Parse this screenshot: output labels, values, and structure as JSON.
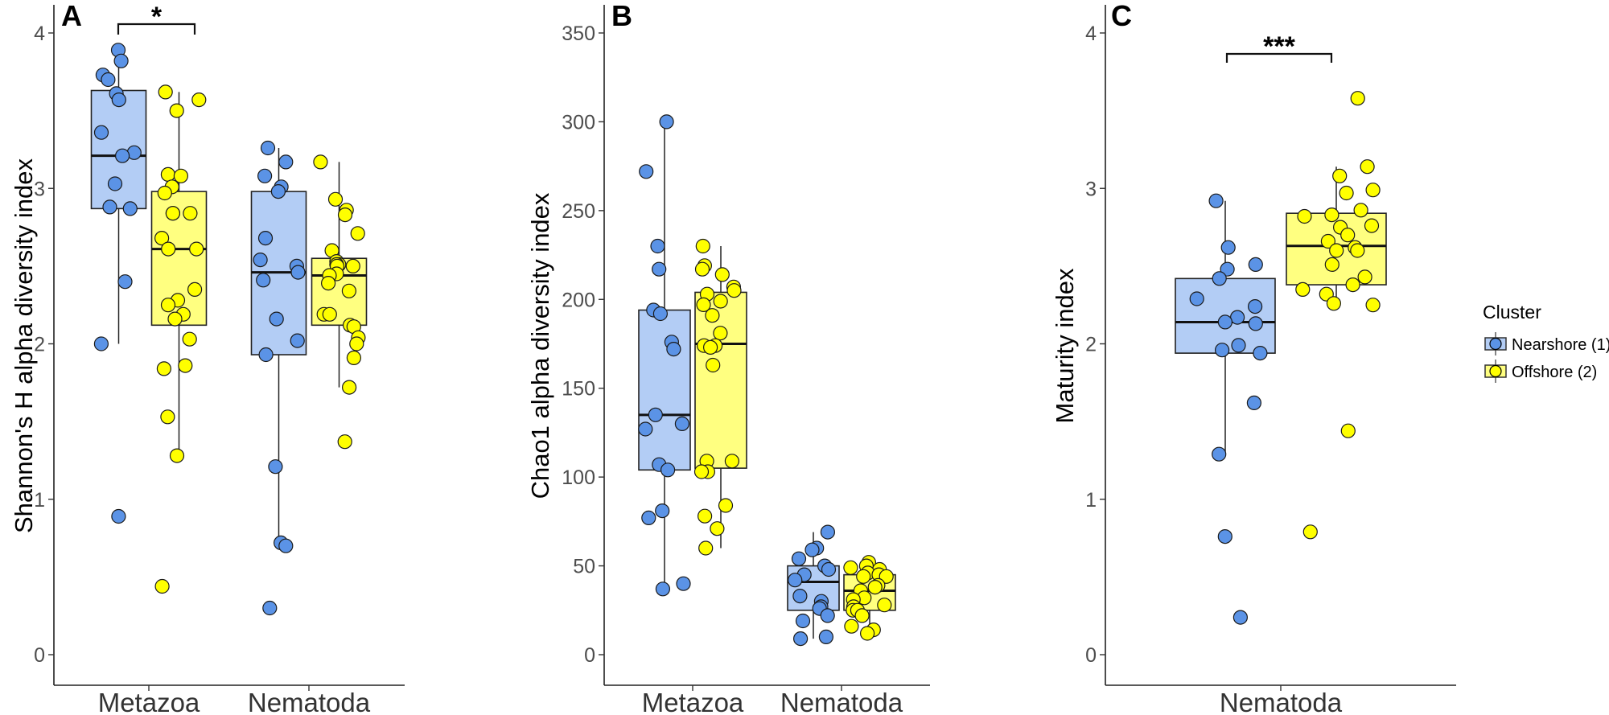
{
  "chart_data": [
    {
      "type": "box",
      "panel_label": "A",
      "ylabel": "Shannon's H alpha diversity index",
      "xlabel": "",
      "categories": [
        "Metazoa",
        "Nematoda"
      ],
      "ylim": [
        -0.2,
        4.1
      ],
      "yticks": [
        "0",
        "1",
        "2",
        "3",
        "4"
      ],
      "ytick_values": [
        0,
        1,
        2,
        3,
        4
      ],
      "grid": false,
      "significance": [
        {
          "category": "Metazoa",
          "label": "*"
        }
      ],
      "series": [
        {
          "name": "Nearshore (1)",
          "boxes": [
            {
              "category": "Metazoa",
              "q1": 2.87,
              "median": 3.21,
              "q3": 3.63,
              "whisker_low": 2.0,
              "whisker_high": 3.87,
              "points": [
                3.89,
                3.82,
                3.73,
                3.7,
                3.61,
                3.57,
                3.36,
                3.23,
                3.21,
                3.03,
                2.88,
                2.87,
                2.4,
                2.0,
                0.89
              ]
            },
            {
              "category": "Nematoda",
              "q1": 1.93,
              "median": 2.46,
              "q3": 2.98,
              "whisker_low": 0.72,
              "whisker_high": 3.26,
              "points": [
                3.26,
                3.17,
                3.08,
                3.01,
                2.98,
                2.68,
                2.54,
                2.5,
                2.46,
                2.41,
                2.16,
                2.02,
                1.93,
                1.21,
                0.72,
                0.7,
                0.3
              ]
            }
          ]
        },
        {
          "name": "Offshore (2)",
          "boxes": [
            {
              "category": "Metazoa",
              "q1": 2.12,
              "median": 2.61,
              "q3": 2.98,
              "whisker_low": 1.28,
              "whisker_high": 3.62,
              "points": [
                3.62,
                3.57,
                3.5,
                3.09,
                3.08,
                3.01,
                2.97,
                2.84,
                2.84,
                2.84,
                2.68,
                2.61,
                2.61,
                2.35,
                2.28,
                2.25,
                2.19,
                2.16,
                2.03,
                1.86,
                1.84,
                1.53,
                1.28,
                0.44
              ]
            },
            {
              "category": "Nematoda",
              "q1": 2.12,
              "median": 2.44,
              "q3": 2.55,
              "whisker_low": 1.72,
              "whisker_high": 3.17,
              "points": [
                3.17,
                2.93,
                2.86,
                2.83,
                2.71,
                2.6,
                2.53,
                2.51,
                2.51,
                2.5,
                2.5,
                2.45,
                2.44,
                2.39,
                2.34,
                2.19,
                2.19,
                2.12,
                2.11,
                2.04,
                2.0,
                1.91,
                1.72,
                1.37
              ]
            }
          ]
        }
      ]
    },
    {
      "type": "box",
      "panel_label": "B",
      "ylabel": "Chao1 alpha diversity index",
      "xlabel": "",
      "categories": [
        "Metazoa",
        "Nematoda"
      ],
      "ylim": [
        -17,
        360
      ],
      "yticks": [
        "0",
        "50",
        "100",
        "150",
        "200",
        "250",
        "300",
        "350"
      ],
      "ytick_values": [
        0,
        50,
        100,
        150,
        200,
        250,
        300,
        350
      ],
      "grid": false,
      "significance": [],
      "series": [
        {
          "name": "Nearshore (1)",
          "boxes": [
            {
              "category": "Metazoa",
              "q1": 104,
              "median": 135,
              "q3": 194,
              "whisker_low": 37,
              "whisker_high": 300,
              "points": [
                300,
                272,
                230,
                217,
                194,
                192,
                176,
                172,
                135,
                130,
                127,
                107,
                104,
                81,
                77,
                40,
                37
              ]
            },
            {
              "category": "Nematoda",
              "q1": 25,
              "median": 41,
              "q3": 50,
              "whisker_low": 9,
              "whisker_high": 69,
              "points": [
                69,
                60,
                59,
                54,
                50,
                48,
                45,
                42,
                33,
                30,
                27,
                26,
                22,
                19,
                10,
                9
              ]
            }
          ]
        },
        {
          "name": "Offshore (2)",
          "boxes": [
            {
              "category": "Metazoa",
              "q1": 105,
              "median": 175,
              "q3": 204,
              "whisker_low": 60,
              "whisker_high": 230,
              "points": [
                230,
                219,
                217,
                214,
                207,
                205,
                203,
                199,
                197,
                191,
                181,
                174,
                174,
                173,
                163,
                109,
                109,
                103,
                103,
                84,
                78,
                71,
                60
              ]
            },
            {
              "category": "Nematoda",
              "q1": 25,
              "median": 36,
              "q3": 45,
              "whisker_low": 11,
              "whisker_high": 52,
              "points": [
                52,
                50,
                49,
                48,
                46,
                45,
                44,
                44,
                39,
                38,
                36,
                32,
                31,
                28,
                27,
                25,
                25,
                22,
                16,
                14,
                12
              ]
            }
          ]
        }
      ]
    },
    {
      "type": "box",
      "panel_label": "C",
      "ylabel": "Maturity index",
      "xlabel": "",
      "categories": [
        "Nematoda"
      ],
      "ylim": [
        -0.2,
        4.1
      ],
      "yticks": [
        "0",
        "1",
        "2",
        "3",
        "4"
      ],
      "ytick_values": [
        0,
        1,
        2,
        3,
        4
      ],
      "grid": false,
      "significance": [
        {
          "category": "Nematoda",
          "label": "***"
        }
      ],
      "series": [
        {
          "name": "Nearshore (1)",
          "boxes": [
            {
              "category": "Nematoda",
              "q1": 1.94,
              "median": 2.14,
              "q3": 2.42,
              "whisker_low": 1.29,
              "whisker_high": 2.92,
              "points": [
                2.92,
                2.62,
                2.51,
                2.48,
                2.42,
                2.29,
                2.24,
                2.17,
                2.14,
                2.13,
                1.99,
                1.96,
                1.94,
                1.62,
                1.29,
                0.76,
                0.24
              ]
            }
          ]
        },
        {
          "name": "Offshore (2)",
          "boxes": [
            {
              "category": "Nematoda",
              "q1": 2.38,
              "median": 2.63,
              "q3": 2.84,
              "whisker_low": 2.25,
              "whisker_high": 3.14,
              "points": [
                3.58,
                3.14,
                3.08,
                2.99,
                2.97,
                2.86,
                2.83,
                2.82,
                2.76,
                2.75,
                2.7,
                2.66,
                2.62,
                2.6,
                2.6,
                2.51,
                2.43,
                2.38,
                2.35,
                2.32,
                2.26,
                2.25,
                1.44,
                0.79
              ]
            }
          ]
        }
      ]
    }
  ],
  "legend": {
    "title": "Cluster",
    "placement": "right",
    "items": [
      {
        "label": "Nearshore (1)",
        "box_color": "#b3cdf5",
        "point_color": "#5b93e6"
      },
      {
        "label": "Offshore (2)",
        "box_color": "#ffff80",
        "point_color": "#ffff00"
      }
    ]
  }
}
